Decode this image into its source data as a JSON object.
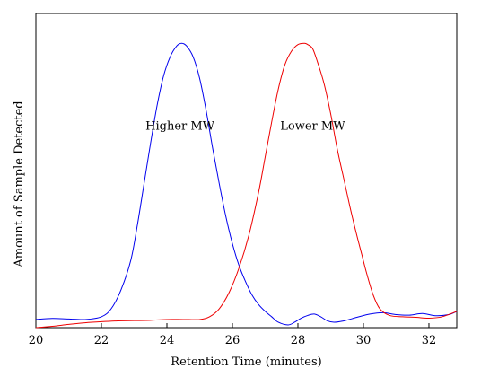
{
  "chart_data": {
    "type": "line",
    "title": "",
    "xlabel": "Retention Time (minutes)",
    "ylabel": "Amount of Sample Detected",
    "xlim": [
      20,
      32.85
    ],
    "ylim": [
      0,
      1.16
    ],
    "xticks": [
      20,
      22,
      24,
      26,
      28,
      30,
      32
    ],
    "xtick_labels": [
      "20",
      "22",
      "24",
      "26",
      "28",
      "30",
      "32"
    ],
    "yticks_shown": false,
    "grid": false,
    "legend": "none",
    "annotations": [
      {
        "text": "Higher MW",
        "x": 24.4,
        "y": 0.73
      },
      {
        "text": "Lower MW",
        "x": 28.45,
        "y": 0.73
      }
    ],
    "series": [
      {
        "color": "#0000ee",
        "x": [
          20.0,
          20.5,
          21.0,
          21.5,
          22.0,
          22.3,
          22.6,
          22.9,
          23.1,
          23.3,
          23.5,
          23.7,
          23.9,
          24.1,
          24.3,
          24.45,
          24.6,
          24.8,
          25.0,
          25.2,
          25.4,
          25.6,
          25.8,
          26.0,
          26.2,
          26.4,
          26.6,
          26.8,
          27.0,
          27.2,
          27.4,
          27.7,
          27.9,
          28.1,
          28.3,
          28.5,
          28.7,
          28.9,
          29.1,
          29.4,
          29.8,
          30.2,
          30.6,
          31.0,
          31.4,
          31.8,
          32.2,
          32.6,
          32.85
        ],
        "y": [
          0.03,
          0.034,
          0.032,
          0.03,
          0.04,
          0.07,
          0.14,
          0.25,
          0.38,
          0.53,
          0.68,
          0.82,
          0.93,
          1.0,
          1.04,
          1.05,
          1.04,
          1.0,
          0.92,
          0.8,
          0.66,
          0.53,
          0.41,
          0.31,
          0.23,
          0.17,
          0.12,
          0.085,
          0.06,
          0.04,
          0.02,
          0.01,
          0.02,
          0.035,
          0.045,
          0.05,
          0.04,
          0.025,
          0.02,
          0.025,
          0.038,
          0.05,
          0.055,
          0.048,
          0.046,
          0.052,
          0.044,
          0.048,
          0.06
        ]
      },
      {
        "color": "#ee0000",
        "x": [
          20.0,
          20.5,
          21.0,
          21.5,
          22.0,
          22.5,
          23.0,
          23.5,
          24.0,
          24.5,
          25.0,
          25.3,
          25.6,
          25.9,
          26.2,
          26.5,
          26.8,
          27.0,
          27.2,
          27.4,
          27.6,
          27.8,
          28.0,
          28.2,
          28.3,
          28.45,
          28.6,
          28.8,
          29.0,
          29.2,
          29.4,
          29.6,
          29.8,
          29.95,
          30.1,
          30.3,
          30.5,
          30.8,
          31.2,
          31.6,
          32.0,
          32.4,
          32.85
        ],
        "y": [
          0.0,
          0.005,
          0.012,
          0.018,
          0.022,
          0.025,
          0.026,
          0.027,
          0.03,
          0.03,
          0.03,
          0.04,
          0.07,
          0.13,
          0.22,
          0.34,
          0.5,
          0.63,
          0.76,
          0.88,
          0.97,
          1.02,
          1.045,
          1.05,
          1.045,
          1.03,
          0.98,
          0.9,
          0.79,
          0.66,
          0.55,
          0.44,
          0.34,
          0.27,
          0.2,
          0.12,
          0.07,
          0.045,
          0.04,
          0.038,
          0.035,
          0.04,
          0.06
        ]
      }
    ]
  }
}
